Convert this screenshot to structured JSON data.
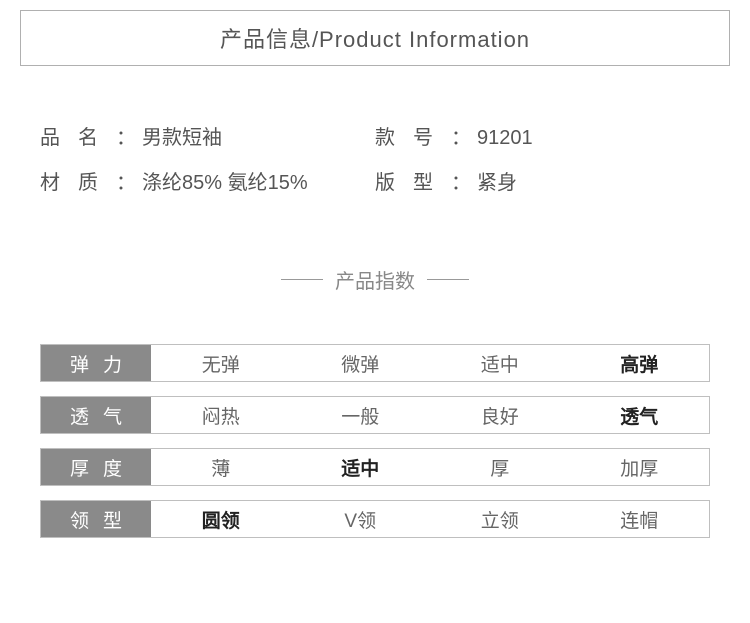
{
  "title": "产品信息/Product Information",
  "info": [
    {
      "label": "品名",
      "value": "男款短袖"
    },
    {
      "label": "款号",
      "value": "91201"
    },
    {
      "label": "材质",
      "value": "涤纶85% 氨纶15%"
    },
    {
      "label": "版型",
      "value": "紧身"
    }
  ],
  "index_title": "产品指数",
  "index_rows": [
    {
      "head": "弹力",
      "options": [
        "无弹",
        "微弹",
        "适中",
        "高弹"
      ],
      "selected": 3
    },
    {
      "head": "透气",
      "options": [
        "闷热",
        "一般",
        "良好",
        "透气"
      ],
      "selected": 3
    },
    {
      "head": "厚度",
      "options": [
        "薄",
        "适中",
        "厚",
        "加厚"
      ],
      "selected": 1
    },
    {
      "head": "领型",
      "options": [
        "圆领",
        "V领",
        "立领",
        "连帽"
      ],
      "selected": 0
    }
  ],
  "colors": {
    "text": "#555555",
    "border": "#b0b0b0",
    "head_bg": "#8a8a8a",
    "head_text": "#ffffff",
    "option_text": "#666666",
    "selected_text": "#222222",
    "dash": "#999999"
  }
}
